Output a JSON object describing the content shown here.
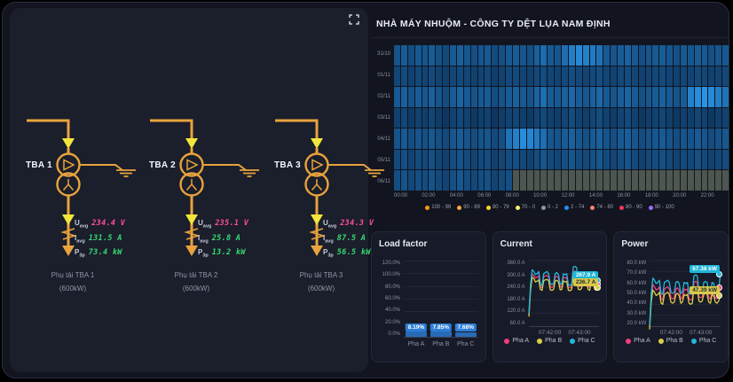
{
  "header": {
    "title": "NHÀ MÁY NHUỘM - CÔNG TY DỆT LỤA NAM ĐỊNH"
  },
  "colors": {
    "diagram_line": "#e8a33d",
    "arrow_yellow": "#f2e53c",
    "voltage_value": "#ff4da0",
    "current_value": "#35d973",
    "power_value": "#35d973",
    "heatmap_low": "#0a2e55",
    "heatmap_high": "#2b9df4",
    "heatmap_missing": "#4d564f",
    "pha_a": "#f23d7b",
    "pha_b": "#d9cf4a",
    "pha_c": "#23b7dd"
  },
  "diagram": {
    "expand_icon": "fullscreen-icon",
    "tbas": [
      {
        "name": "TBA 1",
        "u_label": "U",
        "u_sub": "avg",
        "u_value": "234.4 V",
        "i_label": "I",
        "i_sub": "avg",
        "i_value": "131.5 A",
        "p_label": "P",
        "p_sub": "3p",
        "p_value": "73.4 kW",
        "load_line1": "Phụ tải TBA 1",
        "load_line2": "(600kW)"
      },
      {
        "name": "TBA 2",
        "u_label": "U",
        "u_sub": "avg",
        "u_value": "235.1 V",
        "i_label": "I",
        "i_sub": "avg",
        "i_value": "25.8 A",
        "p_label": "P",
        "p_sub": "3p",
        "p_value": "13.2 kW",
        "load_line1": "Phụ tải TBA 2",
        "load_line2": "(600kW)"
      },
      {
        "name": "TBA 3",
        "u_label": "U",
        "u_sub": "avg",
        "u_value": "234.3 V",
        "i_label": "I",
        "i_sub": "avg",
        "i_value": "87.5 A",
        "p_label": "P",
        "p_sub": "3p",
        "p_value": "56.5 kW",
        "load_line1": "Phụ tải TBA 3",
        "load_line2": "(600kW)"
      }
    ]
  },
  "chart_data": [
    {
      "id": "daily_heatmap",
      "type": "heatmap",
      "title": "",
      "y_categories": [
        "31/10",
        "01/11",
        "02/11",
        "03/11",
        "04/11",
        "05/11",
        "06/11"
      ],
      "x_ticks": [
        "00:00",
        "02:00",
        "04:00",
        "06:00",
        "08:00",
        "10:00",
        "12:00",
        "14:00",
        "16:00",
        "18:00",
        "20:00",
        "22:00"
      ],
      "color_low": "#0a2e55",
      "color_high": "#2b9df4",
      "color_null": "#4d564f",
      "legend": [
        {
          "color": "#f39c12",
          "label": "100 - 99"
        },
        {
          "color": "#f5a93c",
          "label": "90 - 89"
        },
        {
          "color": "#f7d427",
          "label": "80 - 79"
        },
        {
          "color": "#f9ee6e",
          "label": "70 - 0"
        },
        {
          "color": "#8d99a6",
          "label": "0 - 2"
        },
        {
          "color": "#2d8cf0",
          "label": "2 - 74"
        },
        {
          "color": "#fa8072",
          "label": "74 - 80"
        },
        {
          "color": "#f5365c",
          "label": "80 - 90"
        },
        {
          "color": "#a06bfa",
          "label": "90 - 100"
        }
      ],
      "values": [
        [
          55,
          60,
          52,
          58,
          56,
          60,
          54,
          50,
          58,
          62,
          57,
          53,
          56,
          58,
          50,
          53,
          58,
          60,
          56,
          53,
          62,
          68,
          58,
          56,
          70,
          78,
          84,
          80,
          76,
          72,
          58,
          56,
          60,
          63,
          58,
          53,
          56,
          58,
          60,
          56,
          53,
          58,
          56,
          60,
          58,
          53,
          56,
          58
        ],
        [
          48,
          50,
          46,
          49,
          47,
          50,
          46,
          44,
          48,
          50,
          48,
          45,
          47,
          49,
          44,
          46,
          49,
          50,
          47,
          45,
          49,
          51,
          48,
          46,
          50,
          52,
          49,
          47,
          50,
          52,
          48,
          46,
          49,
          51,
          48,
          45,
          47,
          49,
          50,
          47,
          45,
          48,
          47,
          50,
          48,
          45,
          47,
          49
        ],
        [
          58,
          62,
          55,
          60,
          57,
          62,
          56,
          52,
          60,
          64,
          59,
          55,
          58,
          60,
          52,
          55,
          60,
          62,
          58,
          55,
          64,
          70,
          60,
          58,
          62,
          66,
          60,
          57,
          62,
          66,
          58,
          56,
          61,
          64,
          59,
          54,
          57,
          60,
          62,
          58,
          55,
          60,
          80,
          86,
          90,
          84,
          78,
          72
        ],
        [
          45,
          48,
          42,
          46,
          44,
          48,
          43,
          40,
          46,
          49,
          45,
          41,
          44,
          46,
          40,
          43,
          46,
          48,
          44,
          41,
          47,
          50,
          45,
          43,
          48,
          51,
          46,
          44,
          48,
          51,
          45,
          43,
          47,
          50,
          45,
          41,
          44,
          46,
          48,
          44,
          41,
          45,
          44,
          48,
          45,
          41,
          44,
          46
        ],
        [
          55,
          58,
          52,
          56,
          54,
          58,
          53,
          50,
          56,
          60,
          55,
          52,
          55,
          57,
          50,
          53,
          72,
          80,
          86,
          82,
          76,
          70,
          57,
          55,
          60,
          63,
          57,
          54,
          59,
          62,
          55,
          53,
          58,
          61,
          56,
          52,
          55,
          57,
          59,
          55,
          52,
          56,
          55,
          59,
          56,
          52,
          55,
          57
        ],
        [
          50,
          53,
          47,
          51,
          49,
          53,
          48,
          45,
          51,
          55,
          50,
          47,
          50,
          52,
          45,
          48,
          51,
          53,
          49,
          46,
          52,
          56,
          50,
          48,
          53,
          57,
          51,
          49,
          53,
          57,
          50,
          48,
          52,
          55,
          50,
          46,
          49,
          51,
          53,
          49,
          46,
          50,
          49,
          53,
          50,
          46,
          49,
          51
        ],
        [
          52,
          55,
          49,
          53,
          51,
          55,
          50,
          47,
          53,
          57,
          52,
          49,
          52,
          54,
          47,
          50,
          53,
          null,
          null,
          null,
          null,
          null,
          null,
          null,
          null,
          null,
          null,
          null,
          null,
          null,
          null,
          null,
          null,
          null,
          null,
          null,
          null,
          null,
          null,
          null,
          null,
          null,
          null,
          null,
          null,
          null,
          null,
          null
        ]
      ]
    },
    {
      "id": "load_factor",
      "type": "bar",
      "title": "Load factor",
      "categories": [
        "Pha A",
        "Pha B",
        "Pha C"
      ],
      "values": [
        8.19,
        7.85,
        7.68
      ],
      "value_labels": [
        "8.19%",
        "7.85%",
        "7.68%"
      ],
      "y_ticks": [
        "120.0%",
        "100.0%",
        "80.0%",
        "60.0%",
        "40.0%",
        "20.0%",
        "0.0%"
      ],
      "ylim": [
        0,
        120
      ],
      "badge_color": "#2d7ed8"
    },
    {
      "id": "current",
      "type": "line",
      "title": "Current",
      "y_ticks": [
        "360.0 A",
        "300.0 A",
        "240.0 A",
        "180.0 A",
        "120.0 A",
        "60.0 A"
      ],
      "ylim": [
        60,
        360
      ],
      "x_ticks": [
        "07:42:00",
        "07:43:00"
      ],
      "series": [
        {
          "name": "Pha A",
          "color": "#f23d7b",
          "values": [
            112,
            238,
            298,
            292,
            280,
            284,
            290,
            240,
            236,
            286,
            290,
            292,
            284,
            240,
            238,
            242,
            286,
            288,
            280,
            238,
            242,
            284,
            280,
            283,
            238,
            235,
            240,
            308,
            312,
            306,
            245,
            240,
            246,
            283,
            287,
            282,
            240,
            237,
            281,
            278,
            242,
            238,
            244,
            252
          ]
        },
        {
          "name": "Pha B",
          "color": "#d9cf4a",
          "values": [
            104,
            224,
            284,
            278,
            262,
            266,
            272,
            228,
            224,
            268,
            272,
            274,
            268,
            226,
            224,
            228,
            267,
            270,
            262,
            226,
            228,
            267,
            262,
            265,
            224,
            222,
            228,
            292,
            295,
            290,
            230,
            226,
            232,
            266,
            269,
            264,
            228,
            224,
            264,
            260,
            228,
            224,
            230,
            236.7
          ]
        },
        {
          "name": "Pha C",
          "color": "#23b7dd",
          "values": [
            118,
            252,
            318,
            310,
            296,
            300,
            310,
            252,
            246,
            300,
            305,
            310,
            300,
            255,
            250,
            255,
            300,
            305,
            295,
            250,
            255,
            300,
            295,
            300,
            250,
            246,
            252,
            330,
            334,
            328,
            260,
            255,
            262,
            300,
            305,
            300,
            255,
            250,
            299,
            295,
            255,
            250,
            260,
            267.9
          ]
        }
      ],
      "badges": [
        {
          "text": "267.9 A",
          "color": "#1fb6d9",
          "text_color": "#ffffff",
          "series": "Pha C"
        },
        {
          "text": "236.7 A",
          "color": "#d9c94a",
          "text_color": "#20283a",
          "series": "Pha B"
        }
      ]
    },
    {
      "id": "power",
      "type": "line",
      "title": "Power",
      "y_ticks": [
        "80.0 kW",
        "70.0 kW",
        "60.0 kW",
        "50.0 kW",
        "40.0 kW",
        "30.0 kW",
        "20.0 kW"
      ],
      "ylim": [
        20,
        80
      ],
      "x_ticks": [
        "07:42:00",
        "07:43:00"
      ],
      "series": [
        {
          "name": "Pha A",
          "color": "#f23d7b",
          "values": [
            19,
            46,
            58,
            56,
            53,
            54,
            56,
            45,
            44,
            54,
            55,
            56,
            54,
            46,
            45,
            46,
            54,
            55,
            53,
            45,
            46,
            54,
            53,
            54,
            45,
            44,
            45,
            60,
            61,
            60,
            47,
            46,
            47,
            54,
            55,
            54,
            46,
            45,
            54,
            53,
            46,
            45,
            47,
            55
          ]
        },
        {
          "name": "Pha B",
          "color": "#d9cf4a",
          "values": [
            17,
            42,
            53,
            51,
            48,
            49,
            51,
            41,
            40,
            49,
            50,
            51,
            49,
            42,
            41,
            42,
            49,
            50,
            48,
            41,
            42,
            49,
            48,
            49,
            41,
            40,
            41,
            55,
            56,
            55,
            43,
            42,
            43,
            49,
            50,
            49,
            42,
            41,
            49,
            48,
            42,
            41,
            43,
            47.39
          ]
        },
        {
          "name": "Pha C",
          "color": "#23b7dd",
          "values": [
            21,
            50,
            64,
            62,
            59,
            60,
            62,
            50,
            49,
            60,
            61,
            62,
            60,
            51,
            50,
            51,
            60,
            61,
            59,
            50,
            51,
            60,
            59,
            60,
            50,
            49,
            50,
            66,
            67,
            66,
            52,
            51,
            52,
            60,
            61,
            60,
            51,
            50,
            60,
            59,
            51,
            50,
            52,
            67.38
          ]
        }
      ],
      "badges": [
        {
          "text": "67.38 kW",
          "color": "#1fb6d9",
          "text_color": "#ffffff",
          "series": "Pha C"
        },
        {
          "text": "47.39 kW",
          "color": "#d9c94a",
          "text_color": "#20283a",
          "series": "Pha B"
        }
      ]
    }
  ]
}
